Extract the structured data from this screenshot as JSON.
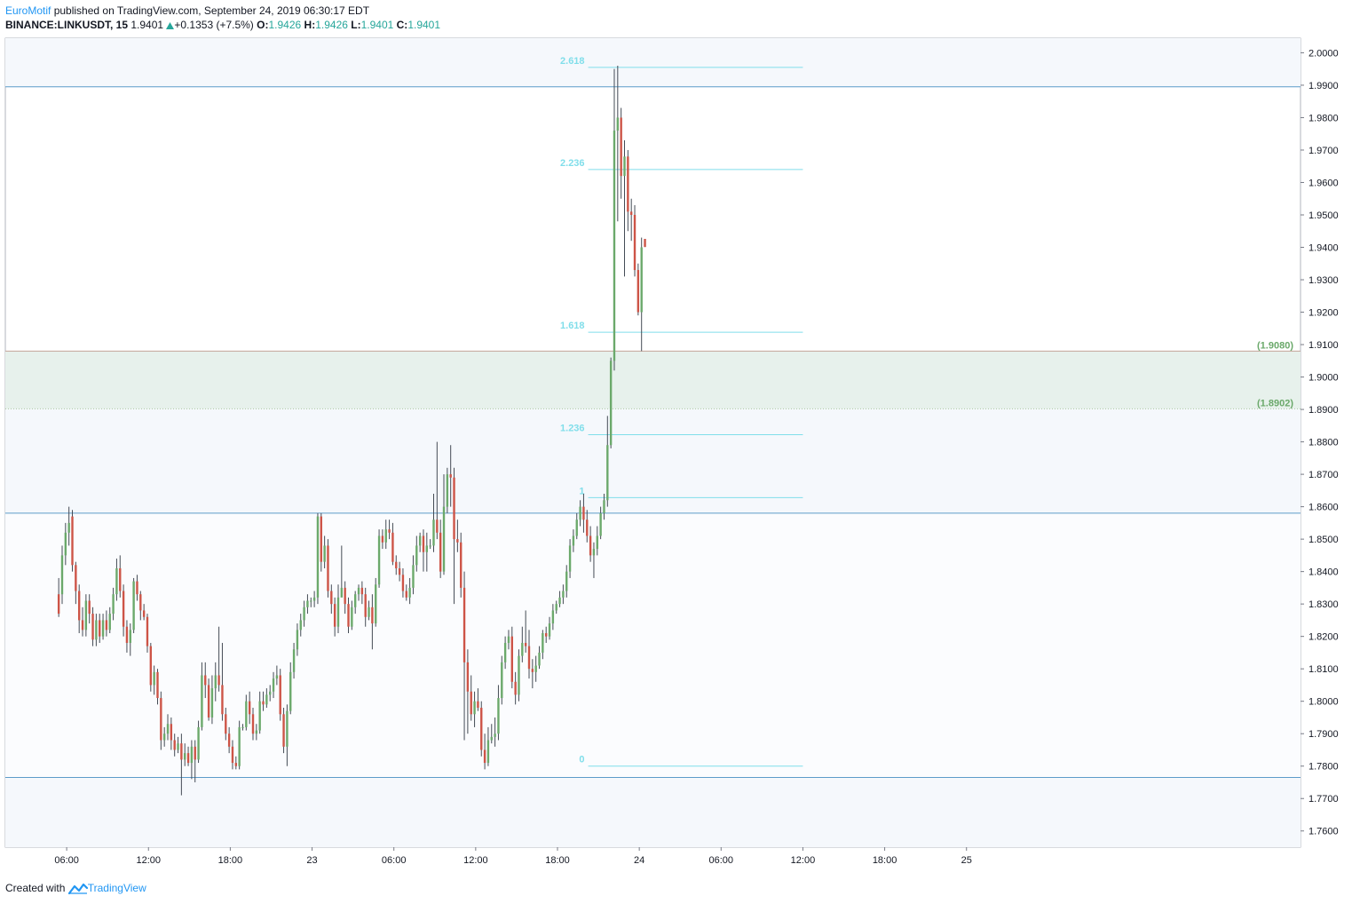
{
  "header": {
    "author": "EuroMotif",
    "published": " published on TradingView.com, September 24, 2019 06:30:17 EDT",
    "symbol": "BINANCE:LINKUSDT, 15",
    "last": "1.9401",
    "change": "+0.1353 (+7.5%)",
    "o_label": "O:",
    "o_value": "1.9426",
    "h_label": "H:",
    "h_value": "1.9426",
    "l_label": "L:",
    "l_value": "1.9401",
    "c_label": "C:",
    "c_value": "1.9401"
  },
  "footer": {
    "created": "Created with",
    "brand": "TradingView"
  },
  "colors": {
    "up": "#6ba96b",
    "down": "#cd5447",
    "fib": "#80deea",
    "hline": "#5d9cc9",
    "zone_fill": "#e7f1ec",
    "zone_line": "#c5a49a",
    "band_fill": "#f5f8fc"
  },
  "chart_data": {
    "type": "candlestick",
    "title": "BINANCE:LINKUSDT, 15",
    "ylim": [
      1.755,
      2.0045
    ],
    "xlim": [
      -26.5,
      68.5
    ],
    "y_ticks": [
      "2.0000",
      "1.9900",
      "1.9800",
      "1.9700",
      "1.9600",
      "1.9500",
      "1.9400",
      "1.9300",
      "1.9200",
      "1.9100",
      "1.9000",
      "1.8900",
      "1.8800",
      "1.8700",
      "1.8600",
      "1.8500",
      "1.8400",
      "1.8300",
      "1.8200",
      "1.8100",
      "1.8000",
      "1.7900",
      "1.7800",
      "1.7700",
      "1.7600"
    ],
    "x_ticks": [
      {
        "label": "06:00",
        "t": -22
      },
      {
        "label": "12:00",
        "t": -16
      },
      {
        "label": "18:00",
        "t": -10
      },
      {
        "label": "23",
        "t": -4
      },
      {
        "label": "06:00",
        "t": 2
      },
      {
        "label": "12:00",
        "t": 8
      },
      {
        "label": "18:00",
        "t": 14
      },
      {
        "label": "24",
        "t": 20
      },
      {
        "label": "06:00",
        "t": 26
      },
      {
        "label": "12:00",
        "t": 32
      },
      {
        "label": "18:00",
        "t": 38
      },
      {
        "label": "25",
        "t": 44
      }
    ],
    "t_unit": "hours from Sept 23 00:00",
    "fib_levels": [
      {
        "label": "2.618",
        "value": 1.9955
      },
      {
        "label": "2.236",
        "value": 1.964
      },
      {
        "label": "1.618",
        "value": 1.9138
      },
      {
        "label": "1.236",
        "value": 1.8822
      },
      {
        "label": "1",
        "value": 1.8628
      },
      {
        "label": "0",
        "value": 1.78
      }
    ],
    "fib_range_t": [
      16.25,
      32
    ],
    "horizontal_lines": [
      1.9895,
      1.858,
      1.7765
    ],
    "zone": {
      "top": 1.908,
      "bottom": 1.8902,
      "top_label": "(1.9080)",
      "bottom_label": "(1.8902)"
    },
    "candles": [
      [
        1.833,
        1.827,
        1.838,
        1.826
      ],
      [
        1.833,
        1.845,
        1.848,
        1.83
      ],
      [
        1.845,
        1.852,
        1.855,
        1.842
      ],
      [
        1.852,
        1.855,
        1.86,
        1.848
      ],
      [
        1.857,
        1.842,
        1.859,
        1.84
      ],
      [
        1.842,
        1.834,
        1.843,
        1.83
      ],
      [
        1.834,
        1.825,
        1.836,
        1.821
      ],
      [
        1.825,
        1.822,
        1.829,
        1.82
      ],
      [
        1.822,
        1.831,
        1.833,
        1.82
      ],
      [
        1.831,
        1.827,
        1.833,
        1.824
      ],
      [
        1.827,
        1.819,
        1.829,
        1.817
      ],
      [
        1.819,
        1.825,
        1.827,
        1.817
      ],
      [
        1.825,
        1.82,
        1.827,
        1.818
      ],
      [
        1.82,
        1.825,
        1.827,
        1.819
      ],
      [
        1.825,
        1.822,
        1.828,
        1.82
      ],
      [
        1.822,
        1.827,
        1.829,
        1.821
      ],
      [
        1.827,
        1.833,
        1.835,
        1.825
      ],
      [
        1.833,
        1.841,
        1.844,
        1.831
      ],
      [
        1.841,
        1.834,
        1.845,
        1.832
      ],
      [
        1.834,
        1.823,
        1.836,
        1.82
      ],
      [
        1.823,
        1.818,
        1.825,
        1.815
      ],
      [
        1.818,
        1.822,
        1.824,
        1.814
      ],
      [
        1.822,
        1.837,
        1.838,
        1.821
      ],
      [
        1.837,
        1.833,
        1.839,
        1.831
      ],
      [
        1.833,
        1.828,
        1.834,
        1.825
      ],
      [
        1.828,
        1.826,
        1.83,
        1.825
      ],
      [
        1.826,
        1.817,
        1.827,
        1.815
      ],
      [
        1.817,
        1.805,
        1.818,
        1.803
      ],
      [
        1.805,
        1.809,
        1.811,
        1.802
      ],
      [
        1.809,
        1.801,
        1.81,
        1.799
      ],
      [
        1.801,
        1.788,
        1.803,
        1.785
      ],
      [
        1.788,
        1.79,
        1.792,
        1.786
      ],
      [
        1.79,
        1.793,
        1.796,
        1.788
      ],
      [
        1.793,
        1.788,
        1.795,
        1.785
      ],
      [
        1.788,
        1.785,
        1.79,
        1.783
      ],
      [
        1.785,
        1.787,
        1.789,
        1.784
      ],
      [
        1.787,
        1.782,
        1.79,
        1.771
      ],
      [
        1.782,
        1.784,
        1.787,
        1.78
      ],
      [
        1.784,
        1.781,
        1.786,
        1.78
      ],
      [
        1.781,
        1.786,
        1.788,
        1.776
      ],
      [
        1.786,
        1.782,
        1.788,
        1.775
      ],
      [
        1.782,
        1.792,
        1.794,
        1.781
      ],
      [
        1.792,
        1.808,
        1.812,
        1.791
      ],
      [
        1.808,
        1.805,
        1.812,
        1.801
      ],
      [
        1.805,
        1.795,
        1.807,
        1.794
      ],
      [
        1.795,
        1.804,
        1.808,
        1.793
      ],
      [
        1.804,
        1.808,
        1.812,
        1.8
      ],
      [
        1.808,
        1.805,
        1.823,
        1.803
      ],
      [
        1.805,
        1.796,
        1.818,
        1.794
      ],
      [
        1.796,
        1.79,
        1.798,
        1.788
      ],
      [
        1.79,
        1.786,
        1.792,
        1.784
      ],
      [
        1.786,
        1.781,
        1.788,
        1.779
      ],
      [
        1.781,
        1.78,
        1.783,
        1.779
      ],
      [
        1.78,
        1.792,
        1.794,
        1.779
      ],
      [
        1.792,
        1.792,
        1.793,
        1.791
      ],
      [
        1.792,
        1.8,
        1.802,
        1.791
      ],
      [
        1.8,
        1.796,
        1.803,
        1.793
      ],
      [
        1.796,
        1.79,
        1.798,
        1.788
      ],
      [
        1.79,
        1.791,
        1.793,
        1.788
      ],
      [
        1.791,
        1.8,
        1.803,
        1.79
      ],
      [
        1.8,
        1.799,
        1.803,
        1.797
      ],
      [
        1.799,
        1.802,
        1.804,
        1.798
      ],
      [
        1.802,
        1.803,
        1.805,
        1.8
      ],
      [
        1.803,
        1.807,
        1.809,
        1.801
      ],
      [
        1.807,
        1.808,
        1.811,
        1.805
      ],
      [
        1.808,
        1.796,
        1.81,
        1.794
      ],
      [
        1.796,
        1.786,
        1.798,
        1.784
      ],
      [
        1.786,
        1.797,
        1.799,
        1.78
      ],
      [
        1.797,
        1.809,
        1.812,
        1.796
      ],
      [
        1.809,
        1.816,
        1.818,
        1.807
      ],
      [
        1.816,
        1.822,
        1.824,
        1.814
      ],
      [
        1.822,
        1.825,
        1.827,
        1.82
      ],
      [
        1.825,
        1.829,
        1.831,
        1.823
      ],
      [
        1.829,
        1.831,
        1.833,
        1.827
      ],
      [
        1.831,
        1.831,
        1.832,
        1.829
      ],
      [
        1.831,
        1.832,
        1.834,
        1.829
      ],
      [
        1.832,
        1.857,
        1.858,
        1.83
      ],
      [
        1.857,
        1.843,
        1.858,
        1.84
      ],
      [
        1.843,
        1.848,
        1.851,
        1.841
      ],
      [
        1.848,
        1.834,
        1.85,
        1.832
      ],
      [
        1.834,
        1.83,
        1.836,
        1.827
      ],
      [
        1.83,
        1.823,
        1.832,
        1.82
      ],
      [
        1.823,
        1.832,
        1.836,
        1.821
      ],
      [
        1.832,
        1.835,
        1.848,
        1.833
      ],
      [
        1.835,
        1.83,
        1.837,
        1.827
      ],
      [
        1.83,
        1.823,
        1.832,
        1.821
      ],
      [
        1.823,
        1.829,
        1.831,
        1.822
      ],
      [
        1.829,
        1.833,
        1.834,
        1.827
      ],
      [
        1.833,
        1.835,
        1.836,
        1.831
      ],
      [
        1.835,
        1.833,
        1.837,
        1.83
      ],
      [
        1.833,
        1.826,
        1.835,
        1.823
      ],
      [
        1.826,
        1.829,
        1.831,
        1.825
      ],
      [
        1.829,
        1.824,
        1.833,
        1.816
      ],
      [
        1.824,
        1.836,
        1.838,
        1.823
      ],
      [
        1.836,
        1.851,
        1.853,
        1.835
      ],
      [
        1.851,
        1.849,
        1.853,
        1.847
      ],
      [
        1.849,
        1.853,
        1.856,
        1.847
      ],
      [
        1.853,
        1.852,
        1.856,
        1.85
      ],
      [
        1.852,
        1.843,
        1.855,
        1.842
      ],
      [
        1.843,
        1.841,
        1.845,
        1.839
      ],
      [
        1.841,
        1.839,
        1.843,
        1.837
      ],
      [
        1.839,
        1.834,
        1.841,
        1.832
      ],
      [
        1.834,
        1.832,
        1.836,
        1.831
      ],
      [
        1.832,
        1.835,
        1.838,
        1.83
      ],
      [
        1.835,
        1.842,
        1.845,
        1.833
      ],
      [
        1.842,
        1.848,
        1.851,
        1.84
      ],
      [
        1.848,
        1.851,
        1.852,
        1.846
      ],
      [
        1.851,
        1.846,
        1.853,
        1.84
      ],
      [
        1.846,
        1.848,
        1.852,
        1.84
      ],
      [
        1.848,
        1.848,
        1.85,
        1.847
      ],
      [
        1.848,
        1.856,
        1.864,
        1.846
      ],
      [
        1.856,
        1.852,
        1.88,
        1.85
      ],
      [
        1.852,
        1.84,
        1.856,
        1.838
      ],
      [
        1.84,
        1.86,
        1.87,
        1.839
      ],
      [
        1.86,
        1.87,
        1.872,
        1.858
      ],
      [
        1.87,
        1.869,
        1.879,
        1.86
      ],
      [
        1.869,
        1.85,
        1.872,
        1.83
      ],
      [
        1.85,
        1.849,
        1.856,
        1.846
      ],
      [
        1.849,
        1.835,
        1.852,
        1.832
      ],
      [
        1.835,
        1.812,
        1.84,
        1.788
      ],
      [
        1.812,
        1.803,
        1.816,
        1.79
      ],
      [
        1.803,
        1.796,
        1.808,
        1.794
      ],
      [
        1.796,
        1.8,
        1.803,
        1.792
      ],
      [
        1.8,
        1.798,
        1.804,
        1.797
      ],
      [
        1.798,
        1.785,
        1.8,
        1.783
      ],
      [
        1.785,
        1.781,
        1.79,
        1.779
      ],
      [
        1.781,
        1.788,
        1.792,
        1.78
      ],
      [
        1.788,
        1.789,
        1.793,
        1.787
      ],
      [
        1.789,
        1.79,
        1.795,
        1.786
      ],
      [
        1.79,
        1.801,
        1.805,
        1.788
      ],
      [
        1.801,
        1.812,
        1.814,
        1.799
      ],
      [
        1.812,
        1.818,
        1.82,
        1.81
      ],
      [
        1.818,
        1.82,
        1.822,
        1.816
      ],
      [
        1.82,
        1.806,
        1.823,
        1.804
      ],
      [
        1.806,
        1.802,
        1.809,
        1.799
      ],
      [
        1.802,
        1.814,
        1.816,
        1.8
      ],
      [
        1.814,
        1.818,
        1.823,
        1.812
      ],
      [
        1.818,
        1.817,
        1.828,
        1.815
      ],
      [
        1.817,
        1.81,
        1.822,
        1.807
      ],
      [
        1.81,
        1.809,
        1.813,
        1.804
      ],
      [
        1.809,
        1.811,
        1.814,
        1.806
      ],
      [
        1.811,
        1.815,
        1.817,
        1.81
      ],
      [
        1.815,
        1.821,
        1.822,
        1.813
      ],
      [
        1.821,
        1.82,
        1.823,
        1.818
      ],
      [
        1.82,
        1.824,
        1.826,
        1.819
      ],
      [
        1.824,
        1.828,
        1.83,
        1.822
      ],
      [
        1.828,
        1.83,
        1.831,
        1.827
      ],
      [
        1.83,
        1.832,
        1.834,
        1.829
      ],
      [
        1.832,
        1.834,
        1.836,
        1.83
      ],
      [
        1.834,
        1.84,
        1.842,
        1.832
      ],
      [
        1.84,
        1.848,
        1.85,
        1.838
      ],
      [
        1.848,
        1.851,
        1.853,
        1.846
      ],
      [
        1.851,
        1.856,
        1.858,
        1.85
      ],
      [
        1.856,
        1.86,
        1.862,
        1.854
      ],
      [
        1.86,
        1.856,
        1.864,
        1.852
      ],
      [
        1.856,
        1.851,
        1.859,
        1.849
      ],
      [
        1.851,
        1.845,
        1.854,
        1.843
      ],
      [
        1.845,
        1.847,
        1.849,
        1.838
      ],
      [
        1.847,
        1.851,
        1.854,
        1.845
      ],
      [
        1.851,
        1.858,
        1.86,
        1.85
      ],
      [
        1.858,
        1.862,
        1.864,
        1.856
      ],
      [
        1.862,
        1.879,
        1.888,
        1.86
      ],
      [
        1.879,
        1.905,
        1.906,
        1.878
      ],
      [
        1.905,
        1.976,
        1.995,
        1.902
      ],
      [
        1.976,
        1.98,
        1.996,
        1.948
      ],
      [
        1.98,
        1.962,
        1.983,
        1.955
      ],
      [
        1.962,
        1.968,
        1.973,
        1.931
      ],
      [
        1.968,
        1.951,
        1.97,
        1.945
      ],
      [
        1.951,
        1.95,
        1.955,
        1.942
      ],
      [
        1.95,
        1.933,
        1.953,
        1.931
      ],
      [
        1.933,
        1.92,
        1.935,
        1.919
      ],
      [
        1.92,
        1.94,
        1.943,
        1.908
      ],
      [
        1.9426,
        1.9401,
        1.9426,
        1.9401
      ]
    ]
  }
}
